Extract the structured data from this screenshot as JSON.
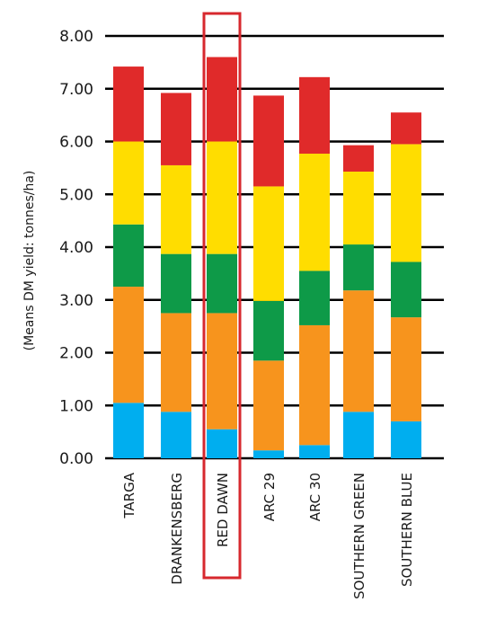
{
  "chart_data": {
    "type": "bar",
    "stacked": true,
    "ylabel": "(Means DM yield: tonnes/ha)",
    "ylim": [
      0,
      8
    ],
    "yticks": [
      "0.00",
      "1.00",
      "2.00",
      "3.00",
      "4.00",
      "5.00",
      "6.00",
      "7.00",
      "8.00"
    ],
    "grid": true,
    "categories": [
      "TARGA",
      "DRANKENSBERG",
      "RED DAWN",
      "ARC 29",
      "ARC 30",
      "SOUTHERN GREEN",
      "SOUTHERN BLUE"
    ],
    "highlighted_category": "RED DAWN",
    "highlight_color": "#d7282e",
    "series": [
      {
        "color": "#00aeef",
        "values": [
          1.05,
          0.88,
          0.55,
          0.15,
          0.25,
          0.88,
          0.7
        ]
      },
      {
        "color": "#f7941d",
        "values": [
          2.2,
          1.87,
          2.2,
          1.7,
          2.27,
          2.3,
          1.97
        ]
      },
      {
        "color": "#0e9a48",
        "values": [
          1.18,
          1.12,
          1.12,
          1.13,
          1.03,
          0.87,
          1.05
        ]
      },
      {
        "color": "#ffdd00",
        "values": [
          1.57,
          1.68,
          2.13,
          2.17,
          2.22,
          1.38,
          2.23
        ]
      },
      {
        "color": "#e02a2a",
        "values": [
          1.42,
          1.37,
          1.6,
          1.72,
          1.45,
          0.5,
          0.6
        ]
      }
    ]
  }
}
